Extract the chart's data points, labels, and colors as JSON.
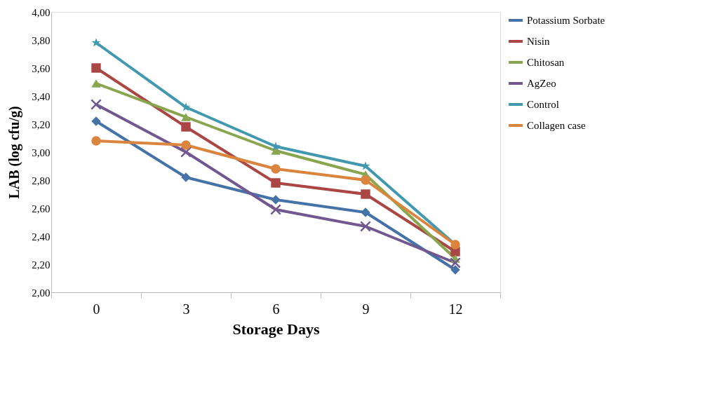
{
  "chart_data": {
    "type": "line",
    "xlabel": "Storage Days",
    "ylabel": "LAB (log cfu/g)",
    "categories": [
      "0",
      "3",
      "6",
      "9",
      "12"
    ],
    "ylim": [
      2.0,
      4.0
    ],
    "yticks": [
      {
        "value": 2.0,
        "label": "2,00"
      },
      {
        "value": 2.2,
        "label": "2,20"
      },
      {
        "value": 2.4,
        "label": "2,40"
      },
      {
        "value": 2.6,
        "label": "2,60"
      },
      {
        "value": 2.8,
        "label": "2,80"
      },
      {
        "value": 3.0,
        "label": "3,00"
      },
      {
        "value": 3.2,
        "label": "3,20"
      },
      {
        "value": 3.4,
        "label": "3,40"
      },
      {
        "value": 3.6,
        "label": "3,60"
      },
      {
        "value": 3.8,
        "label": "3,80"
      },
      {
        "value": 4.0,
        "label": "4,00"
      }
    ],
    "grid": false,
    "legend": "right",
    "line_style": "solid",
    "series": [
      {
        "name": "Potassium Sorbate",
        "color": "#4572a7",
        "marker": "diamond",
        "values": [
          3.22,
          2.82,
          2.66,
          2.57,
          2.16
        ]
      },
      {
        "name": "Nisin",
        "color": "#aa4643",
        "marker": "square",
        "values": [
          3.6,
          3.18,
          2.78,
          2.7,
          2.29
        ]
      },
      {
        "name": "Chitosan",
        "color": "#89a54e",
        "marker": "triangle",
        "values": [
          3.49,
          3.25,
          3.01,
          2.84,
          2.24
        ]
      },
      {
        "name": "AgZeo",
        "color": "#71588f",
        "marker": "cross",
        "values": [
          3.34,
          3.0,
          2.59,
          2.47,
          2.21
        ]
      },
      {
        "name": "Control",
        "color": "#4198af",
        "marker": "star",
        "values": [
          3.78,
          3.32,
          3.04,
          2.9,
          2.34
        ]
      },
      {
        "name": "Collagen case",
        "color": "#db843d",
        "marker": "circle",
        "values": [
          3.08,
          3.05,
          2.88,
          2.8,
          2.34
        ]
      }
    ]
  }
}
